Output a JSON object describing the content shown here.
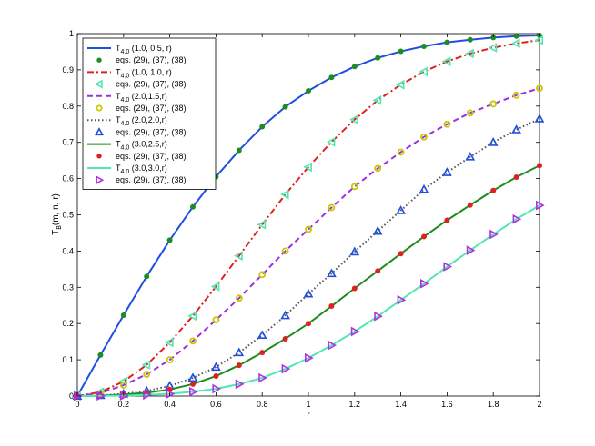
{
  "chart_data": {
    "type": "line",
    "xlabel": "r",
    "ylabel_main": "T",
    "ylabel_sub": "B",
    "ylabel_rest": "(m, n, r)",
    "xlim": [
      0,
      2
    ],
    "ylim": [
      0,
      1
    ],
    "xticks": [
      "0",
      "0.2",
      "0.4",
      "0.6",
      "0.8",
      "1",
      "1.2",
      "1.4",
      "1.6",
      "1.8",
      "2"
    ],
    "yticks": [
      "0",
      "0.1",
      "0.2",
      "0.3",
      "0.4",
      "0.5",
      "0.6",
      "0.7",
      "0.8",
      "0.9",
      "1"
    ],
    "grid": false,
    "legend_position": "top-left",
    "series": [
      {
        "kind": "line",
        "label_main": "T",
        "label_sub": "4.0",
        "label_rest": " (1.0, 0.5, r)",
        "color": "#1f4fe0",
        "dash": "",
        "x": [
          0,
          0.1,
          0.2,
          0.3,
          0.4,
          0.5,
          0.6,
          0.7,
          0.8,
          0.9,
          1.0,
          1.1,
          1.2,
          1.3,
          1.4,
          1.5,
          1.6,
          1.7,
          1.8,
          1.9,
          2.0
        ],
        "y": [
          0,
          0.113,
          0.223,
          0.33,
          0.43,
          0.522,
          0.605,
          0.678,
          0.743,
          0.798,
          0.842,
          0.879,
          0.909,
          0.933,
          0.951,
          0.965,
          0.976,
          0.983,
          0.989,
          0.993,
          0.995
        ]
      },
      {
        "kind": "marker",
        "label": "eqs. (29), (37), (38)",
        "marker": "dot",
        "color": "#1e8c1e",
        "x": [
          0,
          0.1,
          0.2,
          0.3,
          0.4,
          0.5,
          0.6,
          0.7,
          0.8,
          0.9,
          1.0,
          1.1,
          1.2,
          1.3,
          1.4,
          1.5,
          1.6,
          1.7,
          1.8,
          1.9,
          2.0
        ],
        "y": [
          0,
          0.113,
          0.223,
          0.33,
          0.43,
          0.522,
          0.605,
          0.678,
          0.743,
          0.798,
          0.842,
          0.879,
          0.909,
          0.933,
          0.951,
          0.965,
          0.976,
          0.983,
          0.989,
          0.993,
          0.995
        ]
      },
      {
        "kind": "line",
        "label_main": "T",
        "label_sub": "4.0",
        "label_rest": " (1.0, 1.0, r)",
        "color": "#e02020",
        "dash": "7,3,2,3",
        "x": [
          0,
          0.1,
          0.2,
          0.3,
          0.4,
          0.5,
          0.6,
          0.7,
          0.8,
          0.9,
          1.0,
          1.1,
          1.2,
          1.3,
          1.4,
          1.5,
          1.6,
          1.7,
          1.8,
          1.9,
          2.0
        ],
        "y": [
          0,
          0.011,
          0.04,
          0.086,
          0.148,
          0.221,
          0.302,
          0.387,
          0.473,
          0.556,
          0.632,
          0.701,
          0.763,
          0.816,
          0.859,
          0.895,
          0.923,
          0.945,
          0.961,
          0.973,
          0.982
        ]
      },
      {
        "kind": "marker",
        "label": "eqs. (29), (37), (38)",
        "marker": "triangle-left",
        "color": "#4ee8b0",
        "x": [
          0,
          0.1,
          0.2,
          0.3,
          0.4,
          0.5,
          0.6,
          0.7,
          0.8,
          0.9,
          1.0,
          1.1,
          1.2,
          1.3,
          1.4,
          1.5,
          1.6,
          1.7,
          1.8,
          1.9,
          2.0
        ],
        "y": [
          0,
          0.011,
          0.04,
          0.086,
          0.148,
          0.221,
          0.302,
          0.387,
          0.473,
          0.556,
          0.632,
          0.701,
          0.763,
          0.816,
          0.859,
          0.895,
          0.923,
          0.945,
          0.961,
          0.973,
          0.982
        ]
      },
      {
        "kind": "line",
        "label_main": "T",
        "label_sub": "4.0",
        "label_rest": " (2.0,1.5,r)",
        "color": "#9a30e0",
        "dash": "6,4",
        "x": [
          0,
          0.1,
          0.2,
          0.3,
          0.4,
          0.5,
          0.6,
          0.7,
          0.8,
          0.9,
          1.0,
          1.1,
          1.2,
          1.3,
          1.4,
          1.5,
          1.6,
          1.7,
          1.8,
          1.9,
          2.0
        ],
        "y": [
          0,
          0.008,
          0.03,
          0.06,
          0.1,
          0.152,
          0.21,
          0.27,
          0.335,
          0.4,
          0.46,
          0.52,
          0.578,
          0.628,
          0.673,
          0.715,
          0.75,
          0.781,
          0.806,
          0.83,
          0.849
        ]
      },
      {
        "kind": "marker",
        "label": "eqs. (29), (37), (38)",
        "marker": "ring",
        "color": "#c8c800",
        "x": [
          0,
          0.1,
          0.2,
          0.3,
          0.4,
          0.5,
          0.6,
          0.7,
          0.8,
          0.9,
          1.0,
          1.1,
          1.2,
          1.3,
          1.4,
          1.5,
          1.6,
          1.7,
          1.8,
          1.9,
          2.0
        ],
        "y": [
          0,
          0.008,
          0.03,
          0.06,
          0.1,
          0.152,
          0.21,
          0.27,
          0.335,
          0.4,
          0.46,
          0.52,
          0.578,
          0.628,
          0.673,
          0.715,
          0.75,
          0.781,
          0.806,
          0.83,
          0.849
        ]
      },
      {
        "kind": "line",
        "label_main": "T",
        "label_sub": "4.0",
        "label_rest": " (2.0,2.0,r)",
        "color": "#555555",
        "dash": "1.5,2.5",
        "x": [
          0,
          0.1,
          0.2,
          0.3,
          0.4,
          0.5,
          0.6,
          0.7,
          0.8,
          0.9,
          1.0,
          1.1,
          1.2,
          1.3,
          1.4,
          1.5,
          1.6,
          1.7,
          1.8,
          1.9,
          2.0
        ],
        "y": [
          0,
          0.002,
          0.006,
          0.014,
          0.028,
          0.05,
          0.08,
          0.12,
          0.168,
          0.222,
          0.282,
          0.338,
          0.398,
          0.455,
          0.512,
          0.57,
          0.617,
          0.66,
          0.7,
          0.735,
          0.765
        ]
      },
      {
        "kind": "marker",
        "label": "eqs. (29), (37), (38)",
        "marker": "triangle-up",
        "color": "#1f4fe0",
        "x": [
          0,
          0.1,
          0.2,
          0.3,
          0.4,
          0.5,
          0.6,
          0.7,
          0.8,
          0.9,
          1.0,
          1.1,
          1.2,
          1.3,
          1.4,
          1.5,
          1.6,
          1.7,
          1.8,
          1.9,
          2.0
        ],
        "y": [
          0,
          0.002,
          0.006,
          0.014,
          0.028,
          0.05,
          0.08,
          0.12,
          0.168,
          0.222,
          0.282,
          0.338,
          0.398,
          0.455,
          0.512,
          0.57,
          0.617,
          0.66,
          0.7,
          0.735,
          0.765
        ]
      },
      {
        "kind": "line",
        "label_main": "T",
        "label_sub": "4.0",
        "label_rest": " (3.0,2.5,r)",
        "color": "#1e8c1e",
        "dash": "",
        "x": [
          0,
          0.1,
          0.2,
          0.3,
          0.4,
          0.5,
          0.6,
          0.7,
          0.8,
          0.9,
          1.0,
          1.1,
          1.2,
          1.3,
          1.4,
          1.5,
          1.6,
          1.7,
          1.8,
          1.9,
          2.0
        ],
        "y": [
          0,
          0.001,
          0.004,
          0.009,
          0.018,
          0.033,
          0.055,
          0.085,
          0.12,
          0.158,
          0.2,
          0.248,
          0.297,
          0.345,
          0.393,
          0.44,
          0.485,
          0.527,
          0.567,
          0.604,
          0.636
        ]
      },
      {
        "kind": "marker",
        "label": "eqs. (29), (37), (38)",
        "marker": "dot",
        "color": "#e02020",
        "x": [
          0,
          0.1,
          0.2,
          0.3,
          0.4,
          0.5,
          0.6,
          0.7,
          0.8,
          0.9,
          1.0,
          1.1,
          1.2,
          1.3,
          1.4,
          1.5,
          1.6,
          1.7,
          1.8,
          1.9,
          2.0
        ],
        "y": [
          0,
          0.001,
          0.004,
          0.009,
          0.018,
          0.033,
          0.055,
          0.085,
          0.12,
          0.158,
          0.2,
          0.248,
          0.297,
          0.345,
          0.393,
          0.44,
          0.485,
          0.527,
          0.567,
          0.604,
          0.636
        ]
      },
      {
        "kind": "line",
        "label_main": "T",
        "label_sub": "4.0",
        "label_rest": " (3.0,3.0,r)",
        "color": "#4ee8b0",
        "dash": "",
        "x": [
          0,
          0.1,
          0.2,
          0.3,
          0.4,
          0.5,
          0.6,
          0.7,
          0.8,
          0.9,
          1.0,
          1.1,
          1.2,
          1.3,
          1.4,
          1.5,
          1.6,
          1.7,
          1.8,
          1.9,
          2.0
        ],
        "y": [
          0,
          0.0005,
          0.001,
          0.003,
          0.006,
          0.012,
          0.02,
          0.033,
          0.05,
          0.075,
          0.105,
          0.14,
          0.178,
          0.22,
          0.265,
          0.31,
          0.357,
          0.402,
          0.446,
          0.488,
          0.526
        ]
      },
      {
        "kind": "marker",
        "label": "eqs. (29), (37), (38)",
        "marker": "triangle-right",
        "color": "#b030e0",
        "x": [
          0,
          0.1,
          0.2,
          0.3,
          0.4,
          0.5,
          0.6,
          0.7,
          0.8,
          0.9,
          1.0,
          1.1,
          1.2,
          1.3,
          1.4,
          1.5,
          1.6,
          1.7,
          1.8,
          1.9,
          2.0
        ],
        "y": [
          0,
          0.0005,
          0.001,
          0.003,
          0.006,
          0.012,
          0.02,
          0.033,
          0.05,
          0.075,
          0.105,
          0.14,
          0.178,
          0.22,
          0.265,
          0.31,
          0.357,
          0.402,
          0.446,
          0.488,
          0.526
        ]
      }
    ]
  }
}
